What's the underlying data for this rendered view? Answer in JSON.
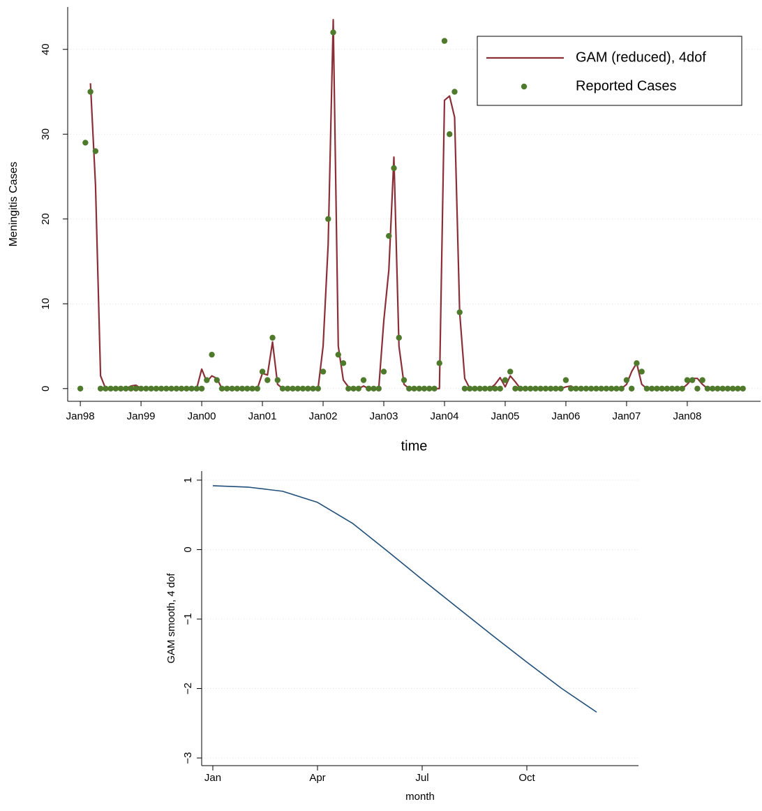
{
  "chart_data": [
    {
      "type": "line",
      "x_label": "time",
      "y_label": "Meningitis Cases",
      "x": [
        0,
        1,
        2,
        3,
        4,
        5,
        6,
        7,
        8,
        9,
        10,
        11,
        12,
        13,
        14,
        15,
        16,
        17,
        18,
        19,
        20,
        21,
        22,
        23,
        24,
        25,
        26,
        27,
        28,
        29,
        30,
        31,
        32,
        33,
        34,
        35,
        36,
        37,
        38,
        39,
        40,
        41,
        42,
        43,
        44,
        45,
        46,
        47,
        48,
        49,
        50,
        51,
        52,
        53,
        54,
        55,
        56,
        57,
        58,
        59,
        60,
        61,
        62,
        63,
        64,
        65,
        66,
        67,
        68,
        69,
        70,
        71,
        72,
        73,
        74,
        75,
        76,
        77,
        78,
        79,
        80,
        81,
        82,
        83,
        84,
        85,
        86,
        87,
        88,
        89,
        90,
        91,
        92,
        93,
        94,
        95,
        96,
        97,
        98,
        99,
        100,
        101,
        102,
        103,
        104,
        105,
        106,
        107,
        108,
        109,
        110,
        111,
        112,
        113,
        114,
        115,
        116,
        117,
        118,
        119,
        120,
        121,
        122,
        123,
        124,
        125,
        126,
        127,
        128,
        129,
        130,
        131
      ],
      "series": [
        {
          "name": "GAM (reduced), 4dof",
          "type": "line",
          "color": "#8b2f36",
          "values": [
            null,
            null,
            36,
            24,
            1.5,
            0,
            0,
            0,
            0,
            0,
            0.3,
            0.4,
            0,
            0,
            0,
            0,
            0,
            0,
            0,
            0,
            0,
            0,
            0,
            0,
            2.3,
            0.8,
            1.5,
            1.2,
            0,
            0,
            0,
            0,
            0,
            0,
            0,
            0,
            1.8,
            1.6,
            5.5,
            0.5,
            0,
            0,
            0,
            0,
            0,
            0,
            0,
            0,
            5,
            17,
            43.5,
            5,
            1,
            0.2,
            0,
            0,
            0.3,
            0,
            0,
            0,
            8,
            14,
            27.3,
            5,
            0.5,
            0,
            0,
            0,
            0,
            0,
            0,
            0,
            34,
            34.5,
            32,
            9,
            1.2,
            0,
            0,
            0,
            0,
            0,
            0.5,
            1.3,
            0.2,
            1.5,
            0.8,
            0,
            0,
            0,
            0,
            0,
            0,
            0,
            0,
            0,
            0.2,
            0.3,
            0,
            0,
            0,
            0,
            0,
            0,
            0,
            0,
            0,
            0,
            0.5,
            2,
            3,
            0.5,
            0,
            0,
            0,
            0,
            0,
            0,
            0,
            0,
            0.5,
            1.2,
            1.2,
            0.5,
            0,
            0,
            0,
            0,
            0,
            0,
            0,
            0
          ]
        },
        {
          "name": "Reported Cases",
          "type": "scatter",
          "color": "#4f7a2b",
          "values": [
            0,
            29,
            35,
            28,
            0,
            0,
            0,
            0,
            0,
            0,
            0,
            0,
            0,
            0,
            0,
            0,
            0,
            0,
            0,
            0,
            0,
            0,
            0,
            0,
            0,
            1,
            4,
            1,
            0,
            0,
            0,
            0,
            0,
            0,
            0,
            0,
            2,
            1,
            6,
            1,
            0,
            0,
            0,
            0,
            0,
            0,
            0,
            0,
            2,
            20,
            42,
            4,
            3,
            0,
            0,
            0,
            1,
            0,
            0,
            0,
            2,
            18,
            26,
            6,
            1,
            0,
            0,
            0,
            0,
            0,
            0,
            3,
            41,
            30,
            35,
            9,
            0,
            0,
            0,
            0,
            0,
            0,
            0,
            0,
            1,
            2,
            0,
            0,
            0,
            0,
            0,
            0,
            0,
            0,
            0,
            0,
            1,
            0,
            0,
            0,
            0,
            0,
            0,
            0,
            0,
            0,
            0,
            0,
            1,
            0,
            3,
            2,
            0,
            0,
            0,
            0,
            0,
            0,
            0,
            0,
            1,
            1,
            0,
            1,
            0,
            0,
            0,
            0,
            0,
            0,
            0,
            0
          ]
        }
      ],
      "xlim": [
        -2.5,
        134.5
      ],
      "xticks": [
        {
          "value": 0,
          "label": "Jan98"
        },
        {
          "value": 12,
          "label": "Jan99"
        },
        {
          "value": 24,
          "label": "Jan00"
        },
        {
          "value": 36,
          "label": "Jan01"
        },
        {
          "value": 48,
          "label": "Jan02"
        },
        {
          "value": 60,
          "label": "Jan03"
        },
        {
          "value": 72,
          "label": "Jan04"
        },
        {
          "value": 84,
          "label": "Jan05"
        },
        {
          "value": 96,
          "label": "Jan06"
        },
        {
          "value": 108,
          "label": "Jan07"
        },
        {
          "value": 120,
          "label": "Jan08"
        }
      ],
      "ylim": [
        -1.5,
        45
      ],
      "yticks": [
        0,
        10,
        20,
        30,
        40
      ],
      "grid": true,
      "legend": "upper right"
    },
    {
      "type": "line",
      "x_label": "month",
      "y_label": "GAM smooth, 4 dof",
      "x": [
        1,
        2,
        3,
        4,
        5,
        6,
        7,
        8,
        9,
        10,
        11,
        12
      ],
      "series": [
        {
          "type": "line",
          "color": "#1f4e79",
          "values": [
            0.92,
            0.9,
            0.84,
            0.68,
            0.38,
            -0.02,
            -0.43,
            -0.83,
            -1.23,
            -1.62,
            -2.0,
            -2.34
          ]
        }
      ],
      "xlim": [
        0.68,
        13.2
      ],
      "xticks": [
        {
          "value": 1,
          "label": "Jan"
        },
        {
          "value": 4,
          "label": "Apr"
        },
        {
          "value": 7,
          "label": "Jul"
        },
        {
          "value": 10,
          "label": "Oct"
        }
      ],
      "ylim": [
        -3.11,
        1.13
      ],
      "yticks": [
        1,
        0,
        {
          "value": -1,
          "label": "−1"
        },
        {
          "value": -2,
          "label": "−2"
        },
        {
          "value": -3,
          "label": "−3"
        }
      ],
      "grid": true
    }
  ]
}
